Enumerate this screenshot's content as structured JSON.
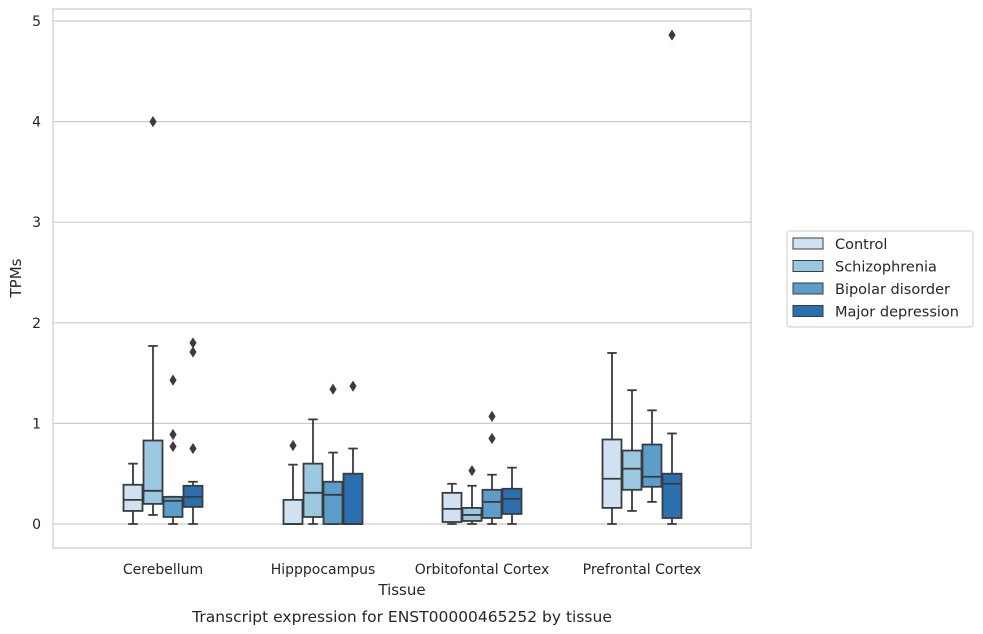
{
  "chart_data": {
    "type": "box",
    "caption": "Transcript expression for ENST00000465252 by tissue",
    "xlabel": "Tissue",
    "ylabel": "TPMs",
    "ylim": [
      -0.23,
      5.1
    ],
    "yticks": [
      0,
      1,
      2,
      3,
      4,
      5
    ],
    "grid": "horizontal",
    "legend_position": "right",
    "categories": [
      "Cerebellum",
      "Hipppocampus",
      "Orbitofontal Cortex",
      "Prefrontal Cortex"
    ],
    "series": [
      {
        "name": "Control",
        "color": "#d0e1f2",
        "boxes": [
          {
            "whislo": 0.0,
            "q1": 0.13,
            "med": 0.24,
            "q3": 0.39,
            "whishi": 0.6,
            "fliers": []
          },
          {
            "whislo": 0.0,
            "q1": 0.0,
            "med": 0.0,
            "q3": 0.24,
            "whishi": 0.59,
            "fliers": [
              0.78
            ]
          },
          {
            "whislo": 0.0,
            "q1": 0.02,
            "med": 0.15,
            "q3": 0.31,
            "whishi": 0.4,
            "fliers": []
          },
          {
            "whislo": 0.0,
            "q1": 0.16,
            "med": 0.45,
            "q3": 0.84,
            "whishi": 1.7,
            "fliers": []
          }
        ]
      },
      {
        "name": "Schizophrenia",
        "color": "#9ac8e0",
        "boxes": [
          {
            "whislo": 0.09,
            "q1": 0.2,
            "med": 0.33,
            "q3": 0.83,
            "whishi": 1.77,
            "fliers": [
              4.0
            ]
          },
          {
            "whislo": 0.0,
            "q1": 0.07,
            "med": 0.31,
            "q3": 0.6,
            "whishi": 1.04,
            "fliers": []
          },
          {
            "whislo": 0.0,
            "q1": 0.03,
            "med": 0.09,
            "q3": 0.16,
            "whishi": 0.38,
            "fliers": [
              0.53
            ]
          },
          {
            "whislo": 0.13,
            "q1": 0.34,
            "med": 0.55,
            "q3": 0.73,
            "whishi": 1.33,
            "fliers": []
          }
        ]
      },
      {
        "name": "Bipolar disorder",
        "color": "#5b9ecb",
        "boxes": [
          {
            "whislo": 0.0,
            "q1": 0.07,
            "med": 0.23,
            "q3": 0.27,
            "whishi": 0.27,
            "fliers": [
              1.43,
              0.89,
              0.77
            ]
          },
          {
            "whislo": 0.0,
            "q1": 0.0,
            "med": 0.29,
            "q3": 0.42,
            "whishi": 0.71,
            "fliers": [
              1.34
            ]
          },
          {
            "whislo": 0.0,
            "q1": 0.06,
            "med": 0.22,
            "q3": 0.34,
            "whishi": 0.49,
            "fliers": [
              1.07,
              0.85
            ]
          },
          {
            "whislo": 0.22,
            "q1": 0.37,
            "med": 0.47,
            "q3": 0.79,
            "whishi": 1.13,
            "fliers": []
          }
        ]
      },
      {
        "name": "Major depression",
        "color": "#2a6fb0",
        "boxes": [
          {
            "whislo": 0.0,
            "q1": 0.17,
            "med": 0.27,
            "q3": 0.38,
            "whishi": 0.42,
            "fliers": [
              1.8,
              1.71,
              0.75
            ]
          },
          {
            "whislo": 0.0,
            "q1": 0.0,
            "med": 0.0,
            "q3": 0.5,
            "whishi": 0.75,
            "fliers": [
              1.37
            ]
          },
          {
            "whislo": 0.0,
            "q1": 0.1,
            "med": 0.25,
            "q3": 0.35,
            "whishi": 0.56,
            "fliers": []
          },
          {
            "whislo": 0.0,
            "q1": 0.06,
            "med": 0.4,
            "q3": 0.5,
            "whishi": 0.9,
            "fliers": [
              4.86
            ]
          }
        ]
      }
    ]
  }
}
